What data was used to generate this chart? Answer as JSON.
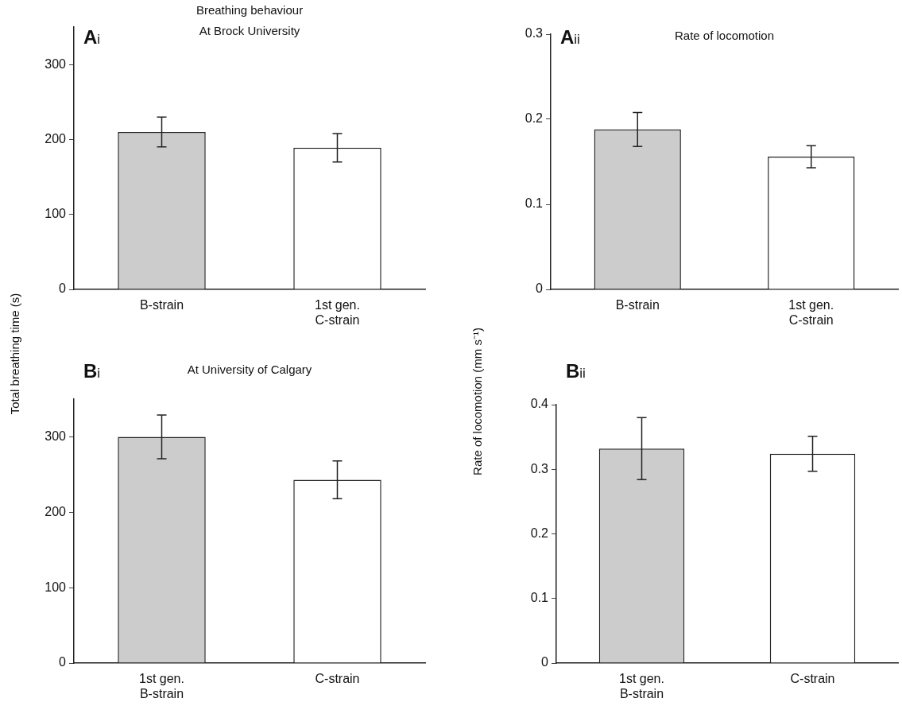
{
  "chart_data": [
    {
      "type": "bar",
      "title": "Breathing behaviour",
      "subtitle": "At Brock University",
      "ylabel": "Total breathing time (s)",
      "annotations": [
        "Ai"
      ],
      "categories": [
        "B-strain",
        "1st gen. C-strain"
      ],
      "values": [
        210,
        189
      ],
      "errors": [
        20,
        19
      ],
      "colors": [
        "#cccccc",
        "#ffffff"
      ],
      "ylim": [
        0,
        350
      ],
      "yticks": [
        0,
        100,
        200,
        300
      ]
    },
    {
      "type": "bar",
      "title": "Rate of locomotion",
      "ylabel": "Rate of locomotion (mm s⁻¹)",
      "annotations": [
        "Aii"
      ],
      "categories": [
        "B-strain",
        "1st gen. C-strain"
      ],
      "values": [
        0.188,
        0.156
      ],
      "errors": [
        0.02,
        0.013
      ],
      "colors": [
        "#cccccc",
        "#ffffff"
      ],
      "ylim": [
        0,
        0.3
      ],
      "yticks": [
        0,
        0.1,
        0.2,
        0.3
      ]
    },
    {
      "type": "bar",
      "title": "At University of Calgary",
      "annotations": [
        "Bi"
      ],
      "categories": [
        "1st gen. B-strain",
        "C-strain"
      ],
      "values": [
        300,
        243
      ],
      "errors": [
        29,
        25
      ],
      "colors": [
        "#cccccc",
        "#ffffff"
      ],
      "ylim": [
        0,
        350
      ],
      "yticks": [
        0,
        100,
        200,
        300
      ]
    },
    {
      "type": "bar",
      "annotations": [
        "Bii"
      ],
      "categories": [
        "1st gen. B-strain",
        "C-strain"
      ],
      "values": [
        0.332,
        0.324
      ],
      "errors": [
        0.048,
        0.027
      ],
      "colors": [
        "#cccccc",
        "#ffffff"
      ],
      "ylim": [
        0,
        0.4
      ],
      "yticks": [
        0,
        0.1,
        0.2,
        0.3,
        0.4
      ]
    }
  ]
}
